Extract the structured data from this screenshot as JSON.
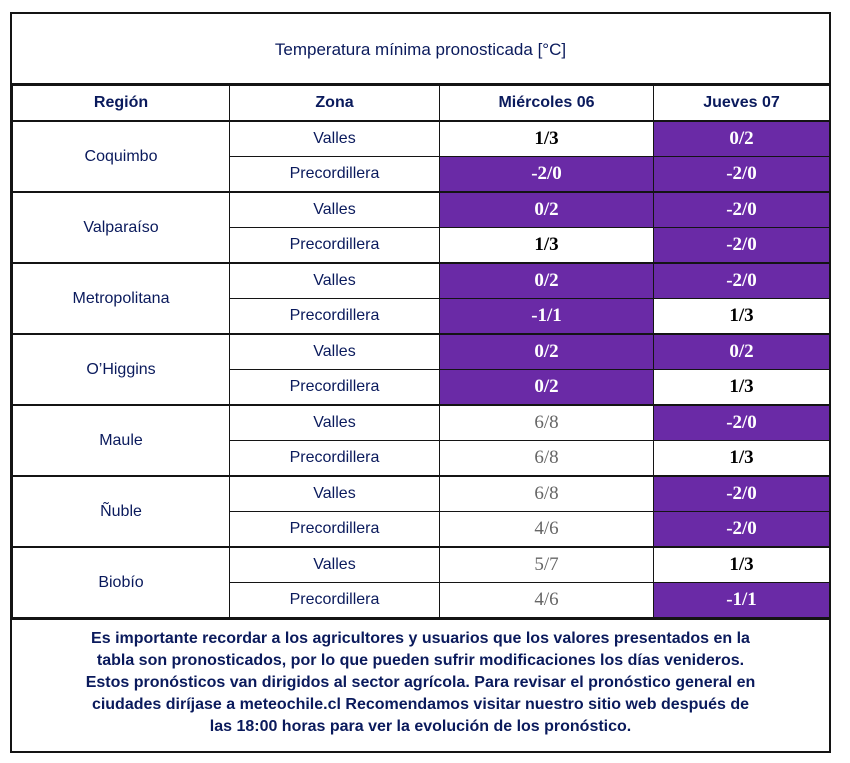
{
  "title": "Temperatura mínima pronosticada [°C]",
  "headers": [
    "Región",
    "Zona",
    "Miércoles 06",
    "Jueves 07"
  ],
  "colors": {
    "purple": "#6a2aa6",
    "text_blue": "#0a1a5c",
    "grey": "#666666"
  },
  "rows": [
    {
      "region": "Coquimbo",
      "zones": [
        {
          "zona": "Valles",
          "wed": "1/3",
          "wed_style": "white",
          "thu": "0/2",
          "thu_style": "purple"
        },
        {
          "zona": "Precordillera",
          "wed": "-2/0",
          "wed_style": "purple",
          "thu": "-2/0",
          "thu_style": "purple"
        }
      ]
    },
    {
      "region": "Valparaíso",
      "zones": [
        {
          "zona": "Valles",
          "wed": "0/2",
          "wed_style": "purple",
          "thu": "-2/0",
          "thu_style": "purple"
        },
        {
          "zona": "Precordillera",
          "wed": "1/3",
          "wed_style": "white",
          "thu": "-2/0",
          "thu_style": "purple"
        }
      ]
    },
    {
      "region": "Metropolitana",
      "zones": [
        {
          "zona": "Valles",
          "wed": "0/2",
          "wed_style": "purple",
          "thu": "-2/0",
          "thu_style": "purple"
        },
        {
          "zona": "Precordillera",
          "wed": "-1/1",
          "wed_style": "purple",
          "thu": "1/3",
          "thu_style": "white"
        }
      ]
    },
    {
      "region": "O’Higgins",
      "zones": [
        {
          "zona": "Valles",
          "wed": "0/2",
          "wed_style": "purple",
          "thu": "0/2",
          "thu_style": "purple"
        },
        {
          "zona": "Precordillera",
          "wed": "0/2",
          "wed_style": "purple",
          "thu": "1/3",
          "thu_style": "white"
        }
      ]
    },
    {
      "region": "Maule",
      "zones": [
        {
          "zona": "Valles",
          "wed": "6/8",
          "wed_style": "grey",
          "thu": "-2/0",
          "thu_style": "purple"
        },
        {
          "zona": "Precordillera",
          "wed": "6/8",
          "wed_style": "grey",
          "thu": "1/3",
          "thu_style": "white"
        }
      ]
    },
    {
      "region": "Ñuble",
      "zones": [
        {
          "zona": "Valles",
          "wed": "6/8",
          "wed_style": "grey",
          "thu": "-2/0",
          "thu_style": "purple"
        },
        {
          "zona": "Precordillera",
          "wed": "4/6",
          "wed_style": "grey",
          "thu": "-2/0",
          "thu_style": "purple"
        }
      ]
    },
    {
      "region": "Biobío",
      "zones": [
        {
          "zona": "Valles",
          "wed": "5/7",
          "wed_style": "grey",
          "thu": "1/3",
          "thu_style": "white"
        },
        {
          "zona": "Precordillera",
          "wed": "4/6",
          "wed_style": "grey",
          "thu": "-1/1",
          "thu_style": "purple"
        }
      ]
    }
  ],
  "note_lines": [
    "Es importante recordar a los agricultores y usuarios que los valores presentados en la",
    "tabla son pronosticados, por lo que pueden sufrir modificaciones los días venideros.",
    "Estos pronósticos van dirigidos al sector agrícola. Para revisar el pronóstico general en",
    "ciudades diríjase a meteochile.cl Recomendamos visitar nuestro sitio web después de",
    "las 18:00 horas para ver la evolución de los pronóstico."
  ]
}
